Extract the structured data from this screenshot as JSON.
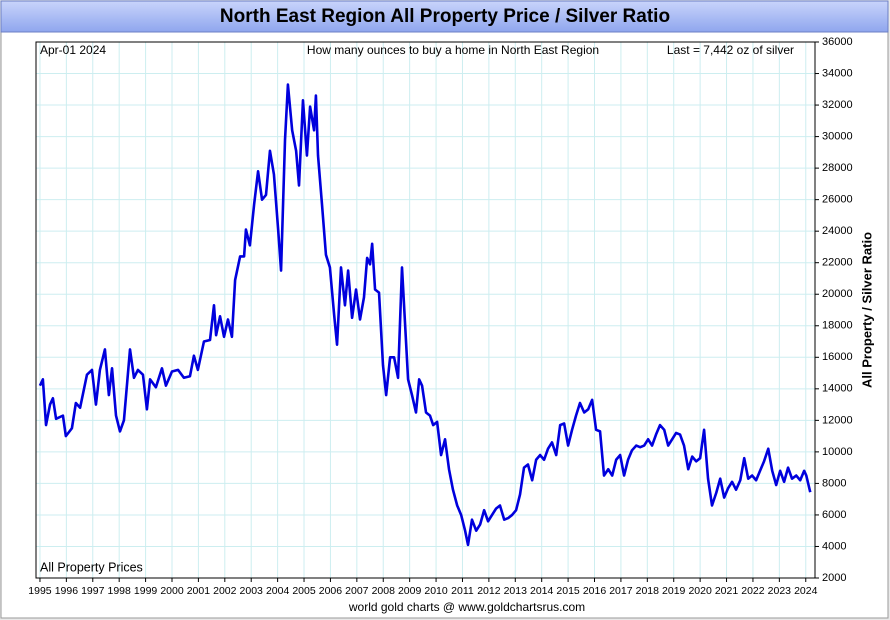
{
  "chart_data": {
    "type": "line",
    "title": "North East Region All Property Price / Silver Ratio",
    "date_label": "Apr-01  2024",
    "subtitle": "How many ounces to buy a home in North East Region",
    "annotation": "Last = 7,442 oz of silver",
    "y_label": "All Property / Silver Ratio",
    "footer": "world gold charts @ www.goldchartsrus.com",
    "grid": true,
    "x": [
      1995.0,
      1995.11,
      1995.23,
      1995.38,
      1995.49,
      1995.61,
      1995.87,
      1995.98,
      1996.21,
      1996.36,
      1996.52,
      1996.78,
      1996.97,
      1997.12,
      1997.27,
      1997.46,
      1997.61,
      1997.73,
      1997.88,
      1998.03,
      1998.18,
      1998.41,
      1998.56,
      1998.71,
      1998.9,
      1999.05,
      1999.17,
      1999.39,
      1999.62,
      1999.77,
      2000.0,
      2000.23,
      2000.45,
      2000.68,
      2000.83,
      2000.98,
      2001.21,
      2001.44,
      2001.59,
      2001.67,
      2001.82,
      2001.97,
      2002.12,
      2002.27,
      2002.39,
      2002.58,
      2002.73,
      2002.8,
      2002.95,
      2003.11,
      2003.26,
      2003.41,
      2003.56,
      2003.71,
      2003.86,
      2004.02,
      2004.13,
      2004.28,
      2004.39,
      2004.55,
      2004.7,
      2004.81,
      2004.96,
      2005.11,
      2005.23,
      2005.38,
      2005.45,
      2005.53,
      2005.68,
      2005.83,
      2005.98,
      2006.14,
      2006.25,
      2006.4,
      2006.55,
      2006.67,
      2006.82,
      2006.97,
      2007.12,
      2007.27,
      2007.39,
      2007.5,
      2007.58,
      2007.69,
      2007.84,
      2007.99,
      2008.11,
      2008.26,
      2008.41,
      2008.56,
      2008.71,
      2008.83,
      2008.94,
      2009.09,
      2009.24,
      2009.36,
      2009.47,
      2009.62,
      2009.77,
      2009.89,
      2010.04,
      2010.19,
      2010.34,
      2010.49,
      2010.64,
      2010.8,
      2010.95,
      2011.1,
      2011.21,
      2011.36,
      2011.52,
      2011.67,
      2011.82,
      2011.97,
      2012.12,
      2012.27,
      2012.42,
      2012.58,
      2012.73,
      2012.88,
      2013.03,
      2013.18,
      2013.33,
      2013.48,
      2013.64,
      2013.79,
      2013.94,
      2014.09,
      2014.24,
      2014.39,
      2014.55,
      2014.7,
      2014.85,
      2015.0,
      2015.15,
      2015.3,
      2015.45,
      2015.61,
      2015.76,
      2015.91,
      2016.06,
      2016.21,
      2016.36,
      2016.52,
      2016.67,
      2016.82,
      2016.97,
      2017.12,
      2017.27,
      2017.42,
      2017.58,
      2017.73,
      2017.88,
      2018.03,
      2018.18,
      2018.33,
      2018.48,
      2018.64,
      2018.79,
      2018.94,
      2019.09,
      2019.24,
      2019.39,
      2019.55,
      2019.7,
      2019.85,
      2020.0,
      2020.15,
      2020.3,
      2020.45,
      2020.61,
      2020.76,
      2020.91,
      2021.06,
      2021.21,
      2021.36,
      2021.52,
      2021.67,
      2021.82,
      2021.97,
      2022.12,
      2022.27,
      2022.42,
      2022.58,
      2022.73,
      2022.88,
      2023.03,
      2023.18,
      2023.33,
      2023.48,
      2023.64,
      2023.79,
      2023.94,
      2024.02,
      2024.17
    ],
    "series": [
      {
        "name": "All Property Prices",
        "color": "#0000dd",
        "values": [
          14200,
          14600,
          11700,
          13000,
          13400,
          12100,
          12300,
          11000,
          11500,
          13100,
          12800,
          14900,
          15200,
          13000,
          15200,
          16500,
          13600,
          15300,
          12300,
          11300,
          12000,
          16500,
          14700,
          15200,
          14900,
          12700,
          14600,
          14100,
          15300,
          14200,
          15100,
          15200,
          14700,
          14800,
          16100,
          15200,
          17000,
          17100,
          19300,
          17400,
          18600,
          17300,
          18400,
          17300,
          20900,
          22400,
          22400,
          24100,
          23100,
          25700,
          27800,
          26000,
          26300,
          29100,
          27600,
          24100,
          21500,
          29800,
          33300,
          30400,
          29100,
          26900,
          32300,
          28800,
          31900,
          30400,
          32600,
          28800,
          25700,
          22500,
          21700,
          18700,
          16800,
          21700,
          19300,
          21500,
          18500,
          20300,
          18400,
          19800,
          22300,
          21900,
          23200,
          20300,
          20100,
          15500,
          13600,
          16000,
          16000,
          14700,
          21700,
          18000,
          14600,
          13600,
          12500,
          14600,
          14200,
          12500,
          12300,
          11700,
          11900,
          9800,
          10800,
          8900,
          7600,
          6600,
          6000,
          5000,
          4100,
          5700,
          5000,
          5400,
          6300,
          5600,
          6000,
          6400,
          6600,
          5700,
          5800,
          6000,
          6300,
          7300,
          9000,
          9200,
          8200,
          9500,
          9800,
          9500,
          10200,
          10600,
          9800,
          11700,
          11800,
          10400,
          11400,
          12300,
          13100,
          12500,
          12700,
          13300,
          11400,
          11300,
          8500,
          8900,
          8500,
          9500,
          9800,
          8500,
          9500,
          10100,
          10400,
          10300,
          10400,
          10800,
          10400,
          11100,
          11700,
          11400,
          10400,
          10800,
          11200,
          11100,
          10400,
          8900,
          9700,
          9400,
          9600,
          11400,
          8300,
          6600,
          7400,
          8300,
          7100,
          7700,
          8100,
          7600,
          8200,
          9600,
          8300,
          8500,
          8200,
          8800,
          9400,
          10200,
          8800,
          7900,
          8800,
          8100,
          9000,
          8300,
          8500,
          8200,
          8800,
          8500,
          7442
        ]
      }
    ],
    "xlim": [
      1994.85,
      2024.35
    ],
    "xticks": [
      1995,
      1996,
      1997,
      1998,
      1999,
      2000,
      2001,
      2002,
      2003,
      2004,
      2005,
      2006,
      2007,
      2008,
      2009,
      2010,
      2011,
      2012,
      2013,
      2014,
      2015,
      2016,
      2017,
      2018,
      2019,
      2020,
      2021,
      2022,
      2023,
      2024
    ],
    "ylim": [
      2000,
      36000
    ],
    "yticks": [
      2000,
      4000,
      6000,
      8000,
      10000,
      12000,
      14000,
      16000,
      18000,
      20000,
      22000,
      24000,
      26000,
      28000,
      30000,
      32000,
      34000,
      36000
    ]
  }
}
